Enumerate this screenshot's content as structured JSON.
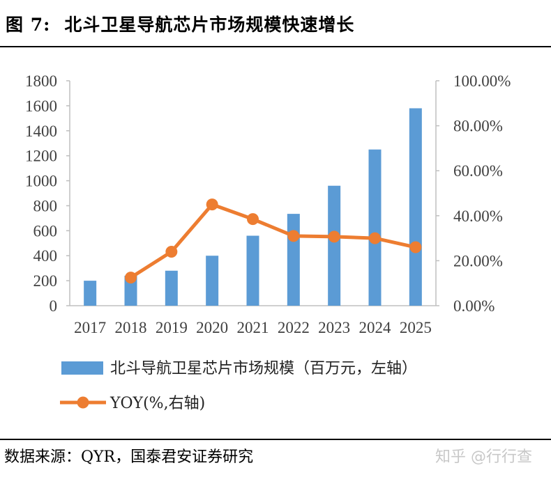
{
  "figure": {
    "label": "图 7:",
    "title": "北斗卫星导航芯片市场规模快速增长"
  },
  "source": "数据来源：QYR，国泰君安证券研究",
  "watermark": "知乎 @行行查",
  "chart_data": {
    "type": "bar+line",
    "categories": [
      "2017",
      "2018",
      "2019",
      "2020",
      "2021",
      "2022",
      "2023",
      "2024",
      "2025"
    ],
    "series": [
      {
        "name": "北斗导航卫星芯片市场规模（百万元，左轴）",
        "type": "bar",
        "axis": "left",
        "color": "#5B9BD5",
        "values": [
          200,
          240,
          280,
          400,
          560,
          735,
          960,
          1250,
          1580
        ]
      },
      {
        "name": "YOY(%,右轴)",
        "type": "line",
        "axis": "right",
        "color": "#ED7D31",
        "values": [
          null,
          12.5,
          24,
          45,
          38.5,
          31,
          30.7,
          30,
          26
        ]
      }
    ],
    "y_left": {
      "min": 0,
      "max": 1800,
      "ticks": [
        "0",
        "200",
        "400",
        "600",
        "800",
        "1000",
        "1200",
        "1400",
        "1600",
        "1800"
      ]
    },
    "y_right": {
      "min": 0,
      "max": 100,
      "ticks": [
        "0.00%",
        "20.00%",
        "40.00%",
        "60.00%",
        "80.00%",
        "100.00%"
      ]
    },
    "grid": false,
    "legend_position": "bottom"
  }
}
